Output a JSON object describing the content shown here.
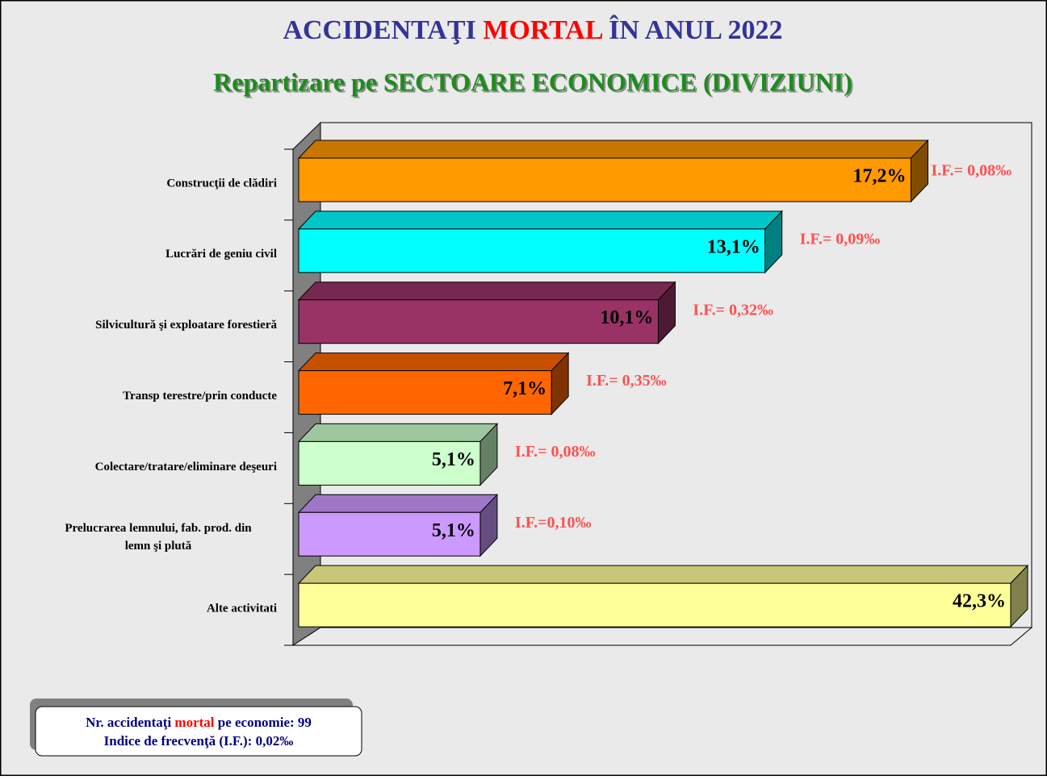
{
  "chart_data": {
    "type": "bar3d-horizontal",
    "title_parts": [
      "ACCIDENTAŢI",
      "MORTAL",
      "ÎN ANUL 2022"
    ],
    "subtitle": "Repartizare pe SECTOARE ECONOMICE (DIVIZIUNI)",
    "categories": [
      "Construcţii de clădiri",
      "Lucrări de geniu civil",
      "Silvicultură şi exploatare forestieră",
      "Transp terestre/prin conducte",
      "Colectare/tratare/eliminare deşeuri",
      "Prelucrarea lemnului, fab. prod. din\nlemn şi plută",
      "Alte activitati"
    ],
    "values": [
      17.2,
      13.1,
      10.1,
      7.1,
      5.1,
      5.1,
      42.3
    ],
    "value_labels": [
      "17,2%",
      "13,1%",
      "10,1%",
      "7,1%",
      "5,1%",
      "5,1%",
      "42,3%"
    ],
    "colors": [
      "#FF9900",
      "#00FFFF",
      "#993366",
      "#FF6600",
      "#CCFFCC",
      "#CC99FF",
      "#FFFF99"
    ],
    "annotations": [
      "I.F.= 0,08‰",
      "I.F.= 0,09‰",
      "I.F.= 0,32‰",
      "I.F.= 0,35‰",
      "I.F.= 0,08‰",
      "I.F.=0,10‰"
    ],
    "xlim": [
      0,
      20
    ],
    "footer": {
      "line1_parts": [
        "Nr. accidentaţi",
        "mortal",
        "pe economie: 99"
      ],
      "line2": "Indice de frecvenţă (I.F.): 0,02‰"
    }
  }
}
